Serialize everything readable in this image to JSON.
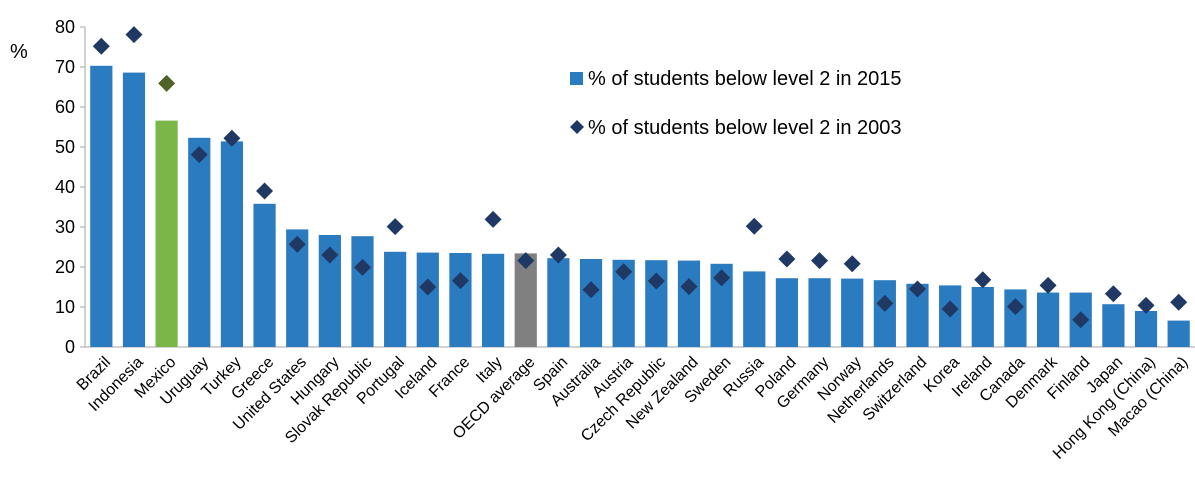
{
  "chart_data": {
    "type": "bar",
    "ylabel": "%",
    "ylim": [
      0,
      80
    ],
    "yticks": [
      0,
      10,
      20,
      30,
      40,
      50,
      60,
      70,
      80
    ],
    "grid": false,
    "legend_position": "top-right",
    "categories": [
      "Brazil",
      "Indonesia",
      "Mexico",
      "Uruguay",
      "Turkey",
      "Greece",
      "United States",
      "Hungary",
      "Slovak Republic",
      "Portugal",
      "Iceland",
      "France",
      "Italy",
      "OECD average",
      "Spain",
      "Australia",
      "Austria",
      "Czech Republic",
      "New Zealand",
      "Sweden",
      "Russia",
      "Poland",
      "Germany",
      "Norway",
      "Netherlands",
      "Switzerland",
      "Korea",
      "Ireland",
      "Canada",
      "Denmark",
      "Finland",
      "Japan",
      "Hong Kong (China)",
      "Macao (China)"
    ],
    "highlights": {
      "Mexico": "#7ab648",
      "OECD average": "#808080"
    },
    "series": [
      {
        "name": "% of students below level 2 in 2015",
        "mark": "bar",
        "color": "#2a7bbf",
        "values": [
          70.3,
          68.6,
          56.6,
          52.3,
          51.4,
          35.8,
          29.4,
          28.0,
          27.7,
          23.8,
          23.6,
          23.5,
          23.3,
          23.4,
          22.2,
          22.0,
          21.8,
          21.7,
          21.6,
          20.8,
          18.9,
          17.2,
          17.2,
          17.1,
          16.7,
          15.8,
          15.4,
          15.0,
          14.4,
          13.6,
          13.6,
          10.7,
          9.0,
          6.6
        ]
      },
      {
        "name": "% of students below level 2 in 2003",
        "mark": "diamond",
        "color": "#1f3864",
        "values": [
          75.2,
          78.1,
          65.9,
          48.1,
          52.2,
          39.0,
          25.7,
          23.0,
          19.9,
          30.1,
          15.0,
          16.6,
          31.9,
          21.6,
          23.0,
          14.3,
          18.8,
          16.5,
          15.1,
          17.3,
          30.2,
          22.0,
          21.6,
          20.8,
          10.9,
          14.5,
          9.5,
          16.8,
          10.1,
          15.4,
          6.8,
          13.3,
          10.4,
          11.2
        ]
      }
    ]
  }
}
